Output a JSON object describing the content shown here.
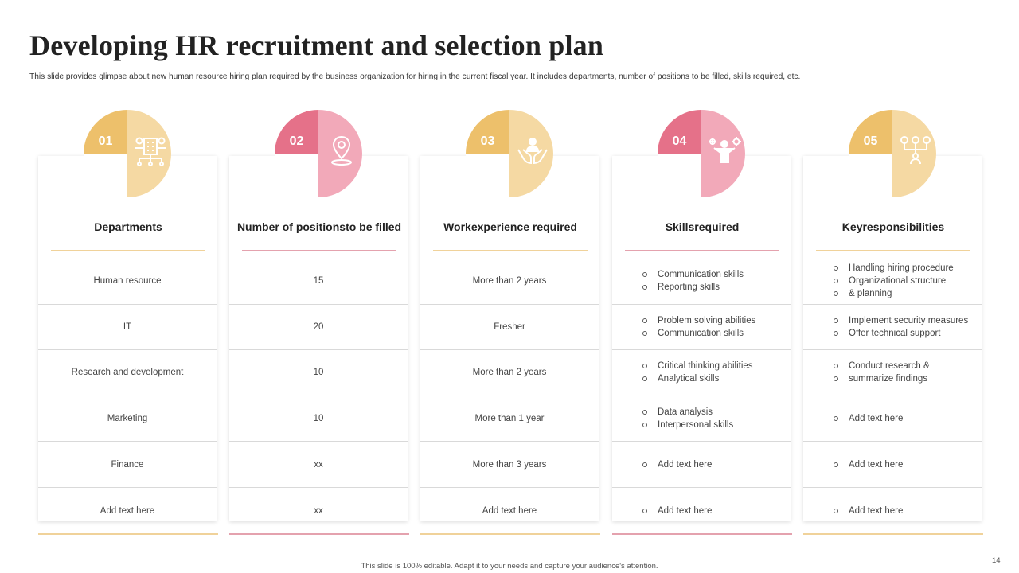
{
  "title": "Developing HR recruitment and selection plan",
  "subtitle": "This slide provides glimpse about new human resource hiring plan required by the business organization for hiring in the current fiscal year. It includes departments, number of positions to be filled, skills required, etc.",
  "colors": {
    "gold_dark": "#EDC06B",
    "gold_light": "#F5D9A3",
    "pink_dark": "#E57189",
    "pink_light": "#F2A9B9",
    "gold_line": "#F0D29A",
    "pink_line": "#E4A2AE"
  },
  "columns": [
    {
      "number": "01",
      "heading": "Departments",
      "icon": "org-chart-icon",
      "theme": "gold",
      "rows": [
        {
          "text": "Human resource"
        },
        {
          "text": "IT"
        },
        {
          "text": "Research and development"
        },
        {
          "text": "Marketing"
        },
        {
          "text": "Finance"
        },
        {
          "text": "Add text here"
        }
      ]
    },
    {
      "number": "02",
      "heading_lines": [
        "Number of positions",
        "to be filled"
      ],
      "icon": "location-pin-icon",
      "theme": "pink",
      "rows": [
        {
          "text": "15"
        },
        {
          "text": "20"
        },
        {
          "text": "10"
        },
        {
          "text": "10"
        },
        {
          "text": "xx"
        },
        {
          "text": "xx"
        }
      ]
    },
    {
      "number": "03",
      "heading_lines": [
        "Work",
        "experience required"
      ],
      "icon": "hands-holding-person-icon",
      "theme": "gold",
      "rows": [
        {
          "text": "More than 2 years"
        },
        {
          "text": "Fresher"
        },
        {
          "text": "More than 2 years"
        },
        {
          "text": "More than 1 year"
        },
        {
          "text": "More than 3 years"
        },
        {
          "text": "Add text here"
        }
      ]
    },
    {
      "number": "04",
      "heading_lines": [
        "Skills",
        "required"
      ],
      "icon": "person-skills-icon",
      "theme": "pink",
      "rows": [
        {
          "items": [
            "Communication skills",
            "Reporting skills"
          ]
        },
        {
          "items": [
            "Problem solving abilities",
            "Communication skills"
          ]
        },
        {
          "items": [
            "Critical thinking abilities",
            "Analytical skills"
          ]
        },
        {
          "items": [
            "Data analysis",
            "Interpersonal skills"
          ]
        },
        {
          "items": [
            "Add text here"
          ]
        },
        {
          "items": [
            "Add text here"
          ]
        }
      ]
    },
    {
      "number": "05",
      "heading_lines": [
        "Key",
        "responsibilities"
      ],
      "icon": "network-person-icon",
      "theme": "gold",
      "rows": [
        {
          "items": [
            "Handling hiring procedure",
            "Organizational structure",
            "& planning"
          ]
        },
        {
          "items": [
            "Implement security measures",
            "Offer technical support"
          ]
        },
        {
          "items": [
            "Conduct research &",
            "summarize findings"
          ]
        },
        {
          "items": [
            "Add text here"
          ]
        },
        {
          "items": [
            "Add text here"
          ]
        },
        {
          "items": [
            "Add text here"
          ]
        }
      ]
    }
  ],
  "footer": "This slide is 100% editable. Adapt it to your needs and capture your audience's attention.",
  "page_number": "14"
}
